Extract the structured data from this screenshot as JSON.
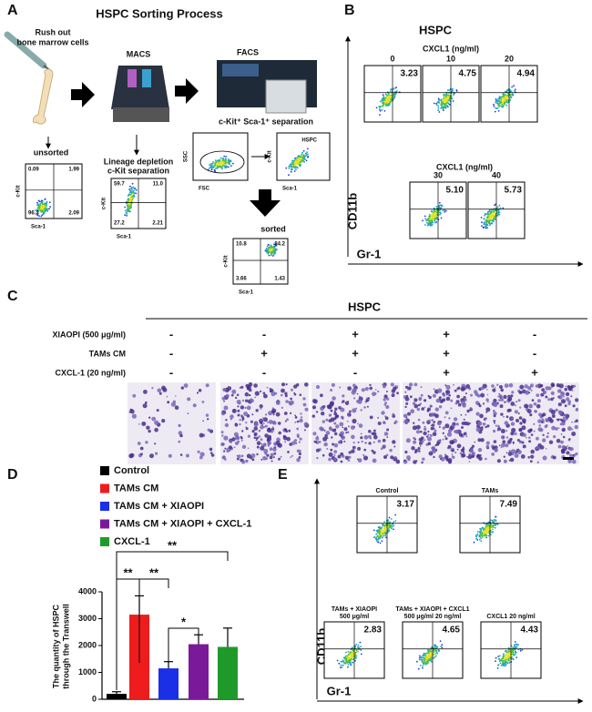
{
  "panel_a": {
    "label": "A",
    "title": "HSPC Sorting Process",
    "source": [
      "Rush out",
      "bone marrow cells"
    ],
    "macs": "MACS",
    "facs": "FACS",
    "unsorted": {
      "title": "unsorted",
      "x_label": "Sca-1",
      "y_label": "c-Kit",
      "quadrants": [
        "0.09",
        "1.99",
        "96.2",
        "2.09"
      ]
    },
    "lineage": {
      "title": [
        "Lineage depletion",
        "c-Kit separation"
      ],
      "x_label": "Sca-1",
      "y_label": "c-Kit",
      "quadrants": [
        "59.7",
        "11.0",
        "27.2",
        "2.21"
      ]
    },
    "separation": "c-Kit⁺ Sca-1⁺ separation",
    "gate": {
      "x_label": "FSC",
      "y_label": "SSC"
    },
    "hspc": {
      "title": "HSPC",
      "x_label": "Sca-1",
      "y_label": "c-Kit"
    },
    "sorted": {
      "title": "sorted",
      "x_label": "Sca-1",
      "y_label": "c-Kit",
      "quadrants": [
        "10.8",
        "84.2",
        "3.66",
        "1.43"
      ]
    }
  },
  "panel_b": {
    "label": "B",
    "title": "HSPC",
    "group_label": "CXCL1 (ng/ml)",
    "plots": [
      {
        "dose": "0",
        "percent": "3.23"
      },
      {
        "dose": "10",
        "percent": "4.75"
      },
      {
        "dose": "20",
        "percent": "4.94"
      },
      {
        "dose": "30",
        "percent": "5.10"
      },
      {
        "dose": "40",
        "percent": "5.73"
      }
    ],
    "y_label": "CD11b",
    "x_label": "Gr-1"
  },
  "panel_c": {
    "label": "C",
    "title": "HSPC",
    "rows": [
      {
        "name": "XIAOPI (500 μg/ml)",
        "signs": [
          "-",
          "-",
          "+",
          "+",
          "-"
        ]
      },
      {
        "name": "TAMs CM",
        "signs": [
          "-",
          "+",
          "+",
          "+",
          "-"
        ]
      },
      {
        "name": "CXCL-1 (20 ng/ml)",
        "signs": [
          "-",
          "-",
          "-",
          "+",
          "+"
        ]
      }
    ]
  },
  "panel_d": {
    "label": "D",
    "chart_data": {
      "type": "bar",
      "ylabel": [
        "The quantity of HSPC",
        "through the Transwell"
      ],
      "categories": [
        "Control",
        "TAMs CM",
        "TAMs CM + XIAOPI",
        "TAMs CM + XIAOPI + CXCL-1",
        "CXCL-1"
      ],
      "colors": [
        "#000000",
        "#ee1c1c",
        "#1a2fe6",
        "#7a1a9a",
        "#1f9a2a"
      ],
      "values": [
        200,
        3150,
        1150,
        2050,
        1950
      ],
      "errors": [
        80,
        700,
        250,
        350,
        700
      ],
      "ylim": [
        0,
        4000
      ],
      "yticks": [
        0,
        1000,
        2000,
        3000,
        4000
      ],
      "significance": [
        "**",
        "**",
        "**",
        "*"
      ]
    }
  },
  "panel_e": {
    "label": "E",
    "plots": [
      {
        "title": [
          "Control"
        ],
        "percent": "3.17"
      },
      {
        "title": [
          "TAMs"
        ],
        "percent": "7.49"
      },
      {
        "title": [
          "TAMs +  XIAOPI",
          "500 μg/ml"
        ],
        "percent": "2.83"
      },
      {
        "title": [
          "TAMs + XIAOPI + CXCL1",
          "500 μg/ml   20 ng/ml"
        ],
        "percent": "4.65"
      },
      {
        "title": [
          "CXCL1 20 ng/ml"
        ],
        "percent": "4.43"
      }
    ],
    "y_label": "CD11b",
    "x_label": "Gr-1"
  }
}
